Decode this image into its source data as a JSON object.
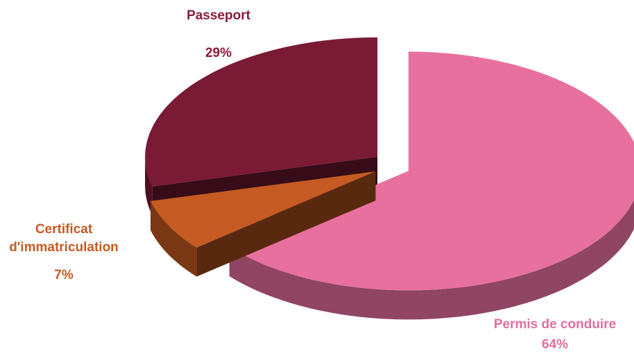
{
  "chart_data": {
    "type": "pie",
    "categories": [
      "Permis de conduire",
      "Certificat d'immatriculation",
      "Passeport"
    ],
    "values": [
      64,
      7,
      29
    ],
    "value_labels": [
      "64%",
      "7%",
      "29%"
    ],
    "colors": [
      "#e8709e",
      "#c55a22",
      "#7a1a35"
    ],
    "exploded": true,
    "3d": true
  }
}
